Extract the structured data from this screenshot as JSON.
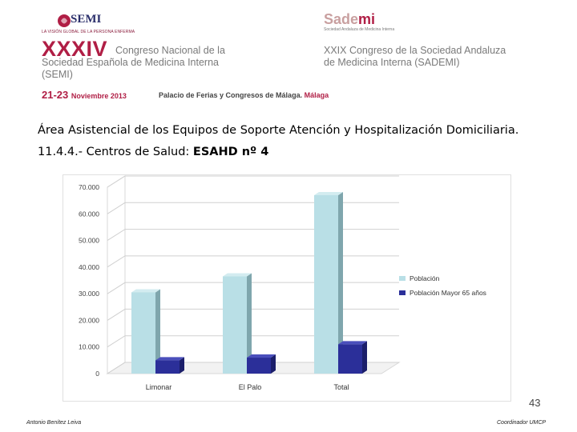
{
  "header": {
    "semi_logo_text": "SEMI",
    "semi_tagline": "LA VISIÓN GLOBAL DE LA PERSONA ENFERMA",
    "sademi_name": "Sade",
    "sademi_name_mi": "mi",
    "sademi_tagline": "Sociedad Andaluza de Medicina Interna",
    "congress_number": "XXXIV",
    "congress_left_l1": "Congreso Nacional de la",
    "congress_left_l2": "Sociedad Española de Medicina Interna",
    "congress_left_l3": "(SEMI)",
    "congress_right_l1": "XXIX Congreso de la Sociedad Andaluza",
    "congress_right_l2": "de Medicina Interna (SADEMI)",
    "dates": "21-23",
    "dates_month": "Noviembre 2013",
    "venue": "Palacio de Ferias y Congresos de Málaga.",
    "venue_city": "Málaga"
  },
  "content": {
    "heading_line1": "Área Asistencial de los Equipos de Soporte Atención y Hospitalización Domiciliaria.",
    "heading_line2_prefix": "11.4.4.- Centros de Salud: ",
    "heading_line2_bold": "ESAHD nº 4"
  },
  "chart_data": {
    "type": "bar",
    "categories": [
      "Limonar",
      "El Palo",
      "Total"
    ],
    "series": [
      {
        "name": "Población",
        "values": [
          30500,
          36500,
          67000
        ],
        "color": "#b9dfe6"
      },
      {
        "name": "Población Mayor 65 años",
        "values": [
          5000,
          6000,
          11000
        ],
        "color": "#2b2f99"
      }
    ],
    "y_ticks": [
      "0",
      "10.000",
      "20.000",
      "30.000",
      "40.000",
      "50.000",
      "60.000",
      "70.000"
    ],
    "ylim": [
      0,
      70000
    ],
    "legend_position": "right",
    "grid": true
  },
  "footer": {
    "page_number": "43",
    "left_text": "Antonio Benítez Leiva",
    "right_text": "Coordinador UMCP"
  },
  "colors": {
    "accent": "#b01e45",
    "header_grey": "#7a7a7a"
  }
}
